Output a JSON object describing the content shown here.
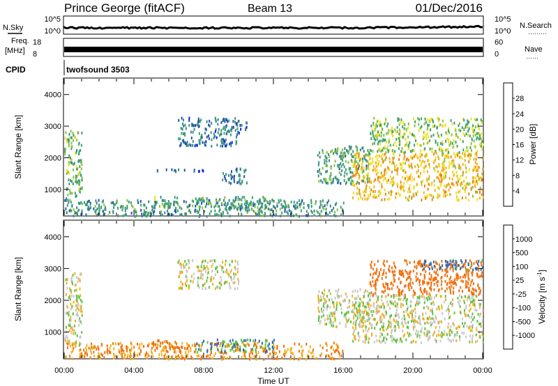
{
  "header": {
    "title": "Prince George (fitACF)",
    "beam": "Beam 13",
    "date": "01/Dec/2016"
  },
  "panels": {
    "sky": {
      "left_label": "N.Sky",
      "right_label": "N.Search",
      "right_dots": "………",
      "left_ticks": [
        "10^5",
        "10^0"
      ],
      "right_ticks": [
        "10^5",
        "10^0"
      ]
    },
    "freq": {
      "left_label_1": "Freq.",
      "left_label_2": "[MHz]",
      "right_label": "Nave",
      "right_dots": "……",
      "left_ticks": [
        "18",
        "8"
      ],
      "right_ticks": [
        "60",
        "0"
      ]
    },
    "cpid": {
      "label": "CPID",
      "value": "twofsound 3503"
    }
  },
  "chart_data": [
    {
      "type": "heatmap",
      "panel": "power",
      "ylabel": "Slant Range [km]",
      "y_ticks": [
        "1000",
        "2000",
        "3000",
        "4000"
      ],
      "ylim": [
        180,
        4500
      ],
      "x_ticks": [
        "00:00",
        "04:00",
        "08:00",
        "12:00",
        "16:00",
        "20:00",
        "00:00"
      ],
      "xlim_hours": [
        0,
        24
      ],
      "colorbar": {
        "label": "Power [dB]",
        "ticks": [
          "4",
          "8",
          "12",
          "16",
          "20",
          "24",
          "28"
        ],
        "colors": [
          "#1010ff",
          "#2050b0",
          "#3a8a8a",
          "#3aa070",
          "#88c040",
          "#f0e020",
          "#f0b020",
          "#f08010",
          "#f04010",
          "#e00000"
        ]
      },
      "echo_regions": [
        {
          "t": [
            0.0,
            1.0
          ],
          "r": [
            600,
            2900
          ],
          "level": 12
        },
        {
          "t": [
            0.0,
            16.0
          ],
          "r": [
            180,
            700
          ],
          "level": 9
        },
        {
          "t": [
            5.0,
            6.5
          ],
          "r": [
            500,
            800
          ],
          "level": 12
        },
        {
          "t": [
            7.5,
            12.0
          ],
          "r": [
            400,
            800
          ],
          "level": 10
        },
        {
          "t": [
            6.5,
            10.0
          ],
          "r": [
            2400,
            3300
          ],
          "level": 6
        },
        {
          "t": [
            9.5,
            10.5
          ],
          "r": [
            2900,
            3200
          ],
          "level": 6
        },
        {
          "t": [
            5.0,
            8.0
          ],
          "r": [
            1600,
            1700
          ],
          "level": 5
        },
        {
          "t": [
            9.0,
            10.5
          ],
          "r": [
            1200,
            1700
          ],
          "level": 7
        },
        {
          "t": [
            14.5,
            17.5
          ],
          "r": [
            1200,
            2400
          ],
          "level": 10
        },
        {
          "t": [
            16.5,
            24.0
          ],
          "r": [
            700,
            2200
          ],
          "level": 20
        },
        {
          "t": [
            17.5,
            24.0
          ],
          "r": [
            2200,
            3300
          ],
          "level": 14
        }
      ]
    },
    {
      "type": "heatmap",
      "panel": "velocity",
      "ylabel": "Slant Range [km]",
      "y_ticks": [
        "1000",
        "2000",
        "3000",
        "4000"
      ],
      "ylim": [
        180,
        4500
      ],
      "x_ticks": [
        "00:00",
        "04:00",
        "08:00",
        "12:00",
        "16:00",
        "20:00",
        "00:00"
      ],
      "xlim_hours": [
        0,
        24
      ],
      "xlabel": "Time UT",
      "colorbar": {
        "label_prefix": "Velocity",
        "label_unit": "[m s",
        "label_sup": "-1",
        "label_close": "]",
        "ticks": [
          "1000",
          "500",
          "100",
          "25",
          "-25",
          "-100",
          "-500",
          "-1000"
        ],
        "colors": [
          "#1f3fa0",
          "#2f6ab0",
          "#2c8c50",
          "#60c040",
          "#c0c0c0",
          "#c0c0c0",
          "#f0b020",
          "#f07010",
          "#f03010",
          "#e00000"
        ]
      },
      "echo_regions": [
        {
          "t": [
            0.0,
            1.0
          ],
          "r": [
            600,
            2900
          ],
          "v": 0
        },
        {
          "t": [
            0.0,
            16.0
          ],
          "r": [
            180,
            700
          ],
          "v": -100
        },
        {
          "t": [
            5.0,
            6.5
          ],
          "r": [
            500,
            800
          ],
          "v": -150
        },
        {
          "t": [
            7.5,
            12.0
          ],
          "r": [
            400,
            800
          ],
          "v": 100
        },
        {
          "t": [
            6.5,
            10.0
          ],
          "r": [
            2400,
            3300
          ],
          "v": 0
        },
        {
          "t": [
            14.5,
            17.5
          ],
          "r": [
            1200,
            2400
          ],
          "v": 0
        },
        {
          "t": [
            16.5,
            24.0
          ],
          "r": [
            700,
            2200
          ],
          "v": 0
        },
        {
          "t": [
            17.5,
            24.0
          ],
          "r": [
            2200,
            3300
          ],
          "v": -200
        },
        {
          "t": [
            20.5,
            24.0
          ],
          "r": [
            3000,
            3300
          ],
          "v": 150
        }
      ]
    }
  ]
}
